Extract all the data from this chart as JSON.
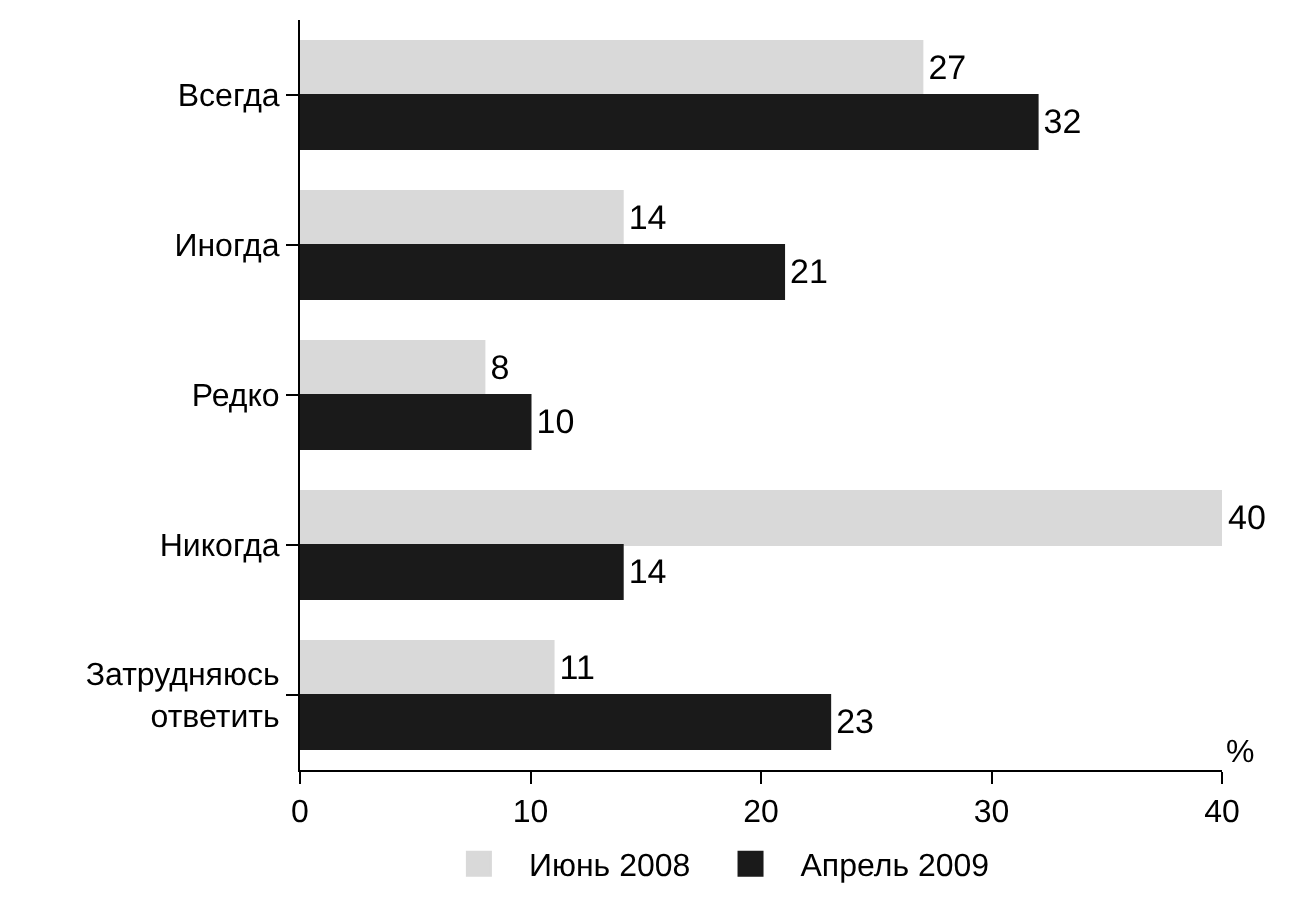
{
  "chart_data": {
    "type": "bar",
    "orientation": "horizontal",
    "categories": [
      "Всегда",
      "Иногда",
      "Редко",
      "Никогда",
      "Затрудняюсь ответить"
    ],
    "series": [
      {
        "name": "Июнь 2008",
        "color": "#d9d9d9",
        "values": [
          27,
          14,
          8,
          40,
          11
        ]
      },
      {
        "name": "Апрель 2009",
        "color": "#1a1a1a",
        "values": [
          32,
          21,
          10,
          14,
          23
        ]
      }
    ],
    "xlabel": "%",
    "xlim": [
      0,
      40
    ],
    "xticks": [
      0,
      10,
      20,
      30,
      40
    ],
    "data_labels": true,
    "legend": "bottom",
    "grid": false
  }
}
